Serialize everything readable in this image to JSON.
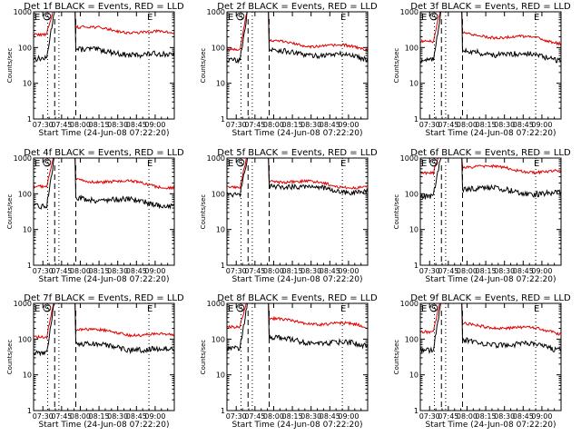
{
  "figure": {
    "background": "#ffffff",
    "events_color": "#000000",
    "lld_color": "#e00000"
  },
  "chart_data": [
    {
      "type": "line",
      "title": "Det 1f BLACK = Events, RED = LLD",
      "xlabel": "Start Time (24-Jun-08 07:22:20)",
      "ylabel": "Counts/sec",
      "yscale": "log",
      "ylim": [
        1,
        1000
      ],
      "x_tick_labels": [
        "07:30",
        "07:45",
        "08:00",
        "08:15",
        "08:30",
        "08:45",
        "09:00"
      ],
      "y_tick_labels": [
        "1",
        "10",
        "100",
        "1000"
      ],
      "markers": [
        "E",
        "S",
        "E"
      ],
      "series": [
        {
          "name": "Events",
          "color": "#000000",
          "level": 55
        },
        {
          "name": "LLD",
          "color": "#e00000",
          "level": 230
        }
      ]
    },
    {
      "type": "line",
      "title": "Det 2f BLACK = Events, RED = LLD",
      "xlabel": "Start Time (24-Jun-08 07:22:20)",
      "ylabel": "Counts/sec",
      "yscale": "log",
      "ylim": [
        1,
        1000
      ],
      "x_tick_labels": [
        "07:30",
        "07:45",
        "08:00",
        "08:15",
        "08:30",
        "08:45",
        "09:00"
      ],
      "y_tick_labels": [
        "1",
        "10",
        "100",
        "1000"
      ],
      "markers": [
        "E",
        "S",
        "E"
      ],
      "series": [
        {
          "name": "Events",
          "color": "#000000",
          "level": 50
        },
        {
          "name": "LLD",
          "color": "#e00000",
          "level": 90
        }
      ]
    },
    {
      "type": "line",
      "title": "Det 3f BLACK = Events, RED = LLD",
      "xlabel": "Start Time (24-Jun-08 07:22:20)",
      "ylabel": "Counts/sec",
      "yscale": "log",
      "ylim": [
        1,
        1000
      ],
      "x_tick_labels": [
        "07:30",
        "07:45",
        "08:00",
        "08:15",
        "08:30",
        "08:45",
        "09:00"
      ],
      "y_tick_labels": [
        "1",
        "10",
        "100",
        "1000"
      ],
      "markers": [
        "E",
        "S",
        "E"
      ],
      "series": [
        {
          "name": "Events",
          "color": "#000000",
          "level": 50
        },
        {
          "name": "LLD",
          "color": "#e00000",
          "level": 150
        }
      ]
    },
    {
      "type": "line",
      "title": "Det 4f BLACK = Events, RED = LLD",
      "xlabel": "Start Time (24-Jun-08 07:22:20)",
      "ylabel": "Counts/sec",
      "yscale": "log",
      "ylim": [
        1,
        1000
      ],
      "x_tick_labels": [
        "07:30",
        "07:45",
        "08:00",
        "08:15",
        "08:30",
        "08:45",
        "09:00"
      ],
      "y_tick_labels": [
        "1",
        "10",
        "100",
        "1000"
      ],
      "markers": [
        "E",
        "S",
        "E"
      ],
      "series": [
        {
          "name": "Events",
          "color": "#000000",
          "level": 50
        },
        {
          "name": "LLD",
          "color": "#e00000",
          "level": 160
        }
      ]
    },
    {
      "type": "line",
      "title": "Det 5f BLACK = Events, RED = LLD",
      "xlabel": "Start Time (24-Jun-08 07:22:20)",
      "ylabel": "Counts/sec",
      "yscale": "log",
      "ylim": [
        1,
        1000
      ],
      "x_tick_labels": [
        "07:30",
        "07:45",
        "08:00",
        "08:15",
        "08:30",
        "08:45",
        "09:00"
      ],
      "y_tick_labels": [
        "1",
        "10",
        "100",
        "1000"
      ],
      "markers": [
        "E",
        "S",
        "E"
      ],
      "series": [
        {
          "name": "Events",
          "color": "#000000",
          "level": 110
        },
        {
          "name": "LLD",
          "color": "#e00000",
          "level": 150
        }
      ]
    },
    {
      "type": "line",
      "title": "Det 6f BLACK = Events, RED = LLD",
      "xlabel": "Start Time (24-Jun-08 07:22:20)",
      "ylabel": "Counts/sec",
      "yscale": "log",
      "ylim": [
        1,
        1000
      ],
      "x_tick_labels": [
        "07:30",
        "07:45",
        "08:00",
        "08:15",
        "08:30",
        "08:45",
        "09:00"
      ],
      "y_tick_labels": [
        "1",
        "10",
        "100",
        "1000"
      ],
      "markers": [
        "E",
        "S",
        "E"
      ],
      "series": [
        {
          "name": "Events",
          "color": "#000000",
          "level": 95
        },
        {
          "name": "LLD",
          "color": "#e00000",
          "level": 380
        }
      ]
    },
    {
      "type": "line",
      "title": "Det 7f BLACK = Events, RED = LLD",
      "xlabel": "Start Time (24-Jun-08 07:22:20)",
      "ylabel": "Counts/sec",
      "yscale": "log",
      "ylim": [
        1,
        1000
      ],
      "x_tick_labels": [
        "07:30",
        "07:45",
        "08:00",
        "08:15",
        "08:30",
        "08:45",
        "09:00"
      ],
      "y_tick_labels": [
        "1",
        "10",
        "100",
        "1000"
      ],
      "markers": [
        "E",
        "S",
        "E"
      ],
      "series": [
        {
          "name": "Events",
          "color": "#000000",
          "level": 45
        },
        {
          "name": "LLD",
          "color": "#e00000",
          "level": 115
        }
      ]
    },
    {
      "type": "line",
      "title": "Det 8f BLACK = Events, RED = LLD",
      "xlabel": "Start Time (24-Jun-08 07:22:20)",
      "ylabel": "Counts/sec",
      "yscale": "log",
      "ylim": [
        1,
        1000
      ],
      "x_tick_labels": [
        "07:30",
        "07:45",
        "08:00",
        "08:15",
        "08:30",
        "08:45",
        "09:00"
      ],
      "y_tick_labels": [
        "1",
        "10",
        "100",
        "1000"
      ],
      "markers": [
        "E",
        "S",
        "E"
      ],
      "series": [
        {
          "name": "Events",
          "color": "#000000",
          "level": 65
        },
        {
          "name": "LLD",
          "color": "#e00000",
          "level": 220
        }
      ]
    },
    {
      "type": "line",
      "title": "Det 9f BLACK = Events, RED = LLD",
      "xlabel": "Start Time (24-Jun-08 07:22:20)",
      "ylabel": "Counts/sec",
      "yscale": "log",
      "ylim": [
        1,
        1000
      ],
      "x_tick_labels": [
        "07:30",
        "07:45",
        "08:00",
        "08:15",
        "08:30",
        "08:45",
        "09:00"
      ],
      "y_tick_labels": [
        "1",
        "10",
        "100",
        "1000"
      ],
      "markers": [
        "E",
        "S",
        "E"
      ],
      "series": [
        {
          "name": "Events",
          "color": "#000000",
          "level": 55
        },
        {
          "name": "LLD",
          "color": "#e00000",
          "level": 160
        }
      ]
    }
  ]
}
